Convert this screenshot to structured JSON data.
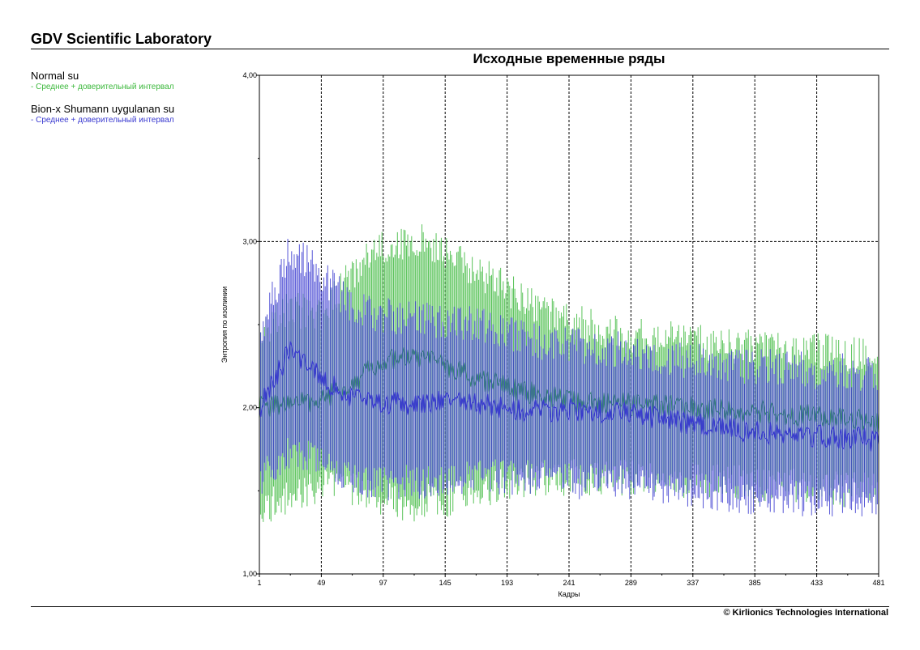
{
  "header": {
    "title": "GDV Scientific Laboratory"
  },
  "footer": {
    "copyright": "© Kirlionics Technologies International"
  },
  "legend": [
    {
      "name": "Normal su",
      "sub": "- Среднее + доверительный интервал",
      "color": "#3cb83c"
    },
    {
      "name": "Bion-x Shumann uygulanan su",
      "sub": "- Среднее + доверительный интервал",
      "color": "#3a3ad0"
    }
  ],
  "chart_data": {
    "type": "line",
    "title": "Исходные временные ряды",
    "xlabel": "Кадры",
    "ylabel": "Энтропия по изолинии",
    "xlim": [
      1,
      481
    ],
    "ylim": [
      1.0,
      4.0
    ],
    "x_ticks": [
      "1",
      "49",
      "97",
      "145",
      "193",
      "241",
      "289",
      "337",
      "385",
      "433",
      "481"
    ],
    "y_ticks": [
      "1,00",
      "2,00",
      "3,00",
      "4,00"
    ],
    "grid": true,
    "error_bars": true,
    "series": [
      {
        "name": "Normal su",
        "color": "#3cb83c",
        "x": [
          1,
          25,
          49,
          73,
          97,
          121,
          145,
          169,
          193,
          217,
          241,
          265,
          289,
          313,
          337,
          361,
          385,
          409,
          433,
          457,
          481
        ],
        "mean": [
          2.0,
          2.03,
          2.05,
          2.15,
          2.28,
          2.3,
          2.25,
          2.18,
          2.12,
          2.08,
          2.05,
          2.03,
          2.02,
          2.01,
          2.0,
          1.99,
          1.98,
          1.96,
          1.95,
          1.93,
          1.92
        ],
        "upper": [
          2.45,
          2.6,
          2.55,
          2.8,
          2.97,
          3.02,
          2.95,
          2.82,
          2.72,
          2.6,
          2.53,
          2.47,
          2.43,
          2.42,
          2.4,
          2.38,
          2.36,
          2.35,
          2.34,
          2.33,
          2.3
        ],
        "lower": [
          1.4,
          1.45,
          1.55,
          1.5,
          1.45,
          1.42,
          1.45,
          1.5,
          1.55,
          1.58,
          1.58,
          1.58,
          1.58,
          1.57,
          1.56,
          1.55,
          1.54,
          1.53,
          1.52,
          1.51,
          1.5
        ]
      },
      {
        "name": "Bion-x Shumann uygulanan su",
        "color": "#3a3ad0",
        "x": [
          1,
          25,
          49,
          73,
          97,
          121,
          145,
          169,
          193,
          217,
          241,
          265,
          289,
          313,
          337,
          361,
          385,
          409,
          433,
          457,
          481
        ],
        "mean": [
          2.0,
          2.35,
          2.18,
          2.05,
          2.03,
          2.02,
          2.05,
          2.02,
          2.0,
          1.98,
          1.99,
          1.98,
          1.97,
          1.93,
          1.9,
          1.88,
          1.85,
          1.84,
          1.83,
          1.82,
          1.8
        ],
        "upper": [
          2.45,
          2.95,
          2.8,
          2.6,
          2.55,
          2.55,
          2.52,
          2.5,
          2.45,
          2.4,
          2.38,
          2.36,
          2.35,
          2.3,
          2.28,
          2.26,
          2.25,
          2.24,
          2.22,
          2.22,
          2.2
        ],
        "lower": [
          1.55,
          1.75,
          1.65,
          1.58,
          1.55,
          1.55,
          1.58,
          1.58,
          1.58,
          1.58,
          1.56,
          1.55,
          1.55,
          1.52,
          1.5,
          1.48,
          1.45,
          1.45,
          1.45,
          1.45,
          1.45
        ]
      }
    ]
  }
}
